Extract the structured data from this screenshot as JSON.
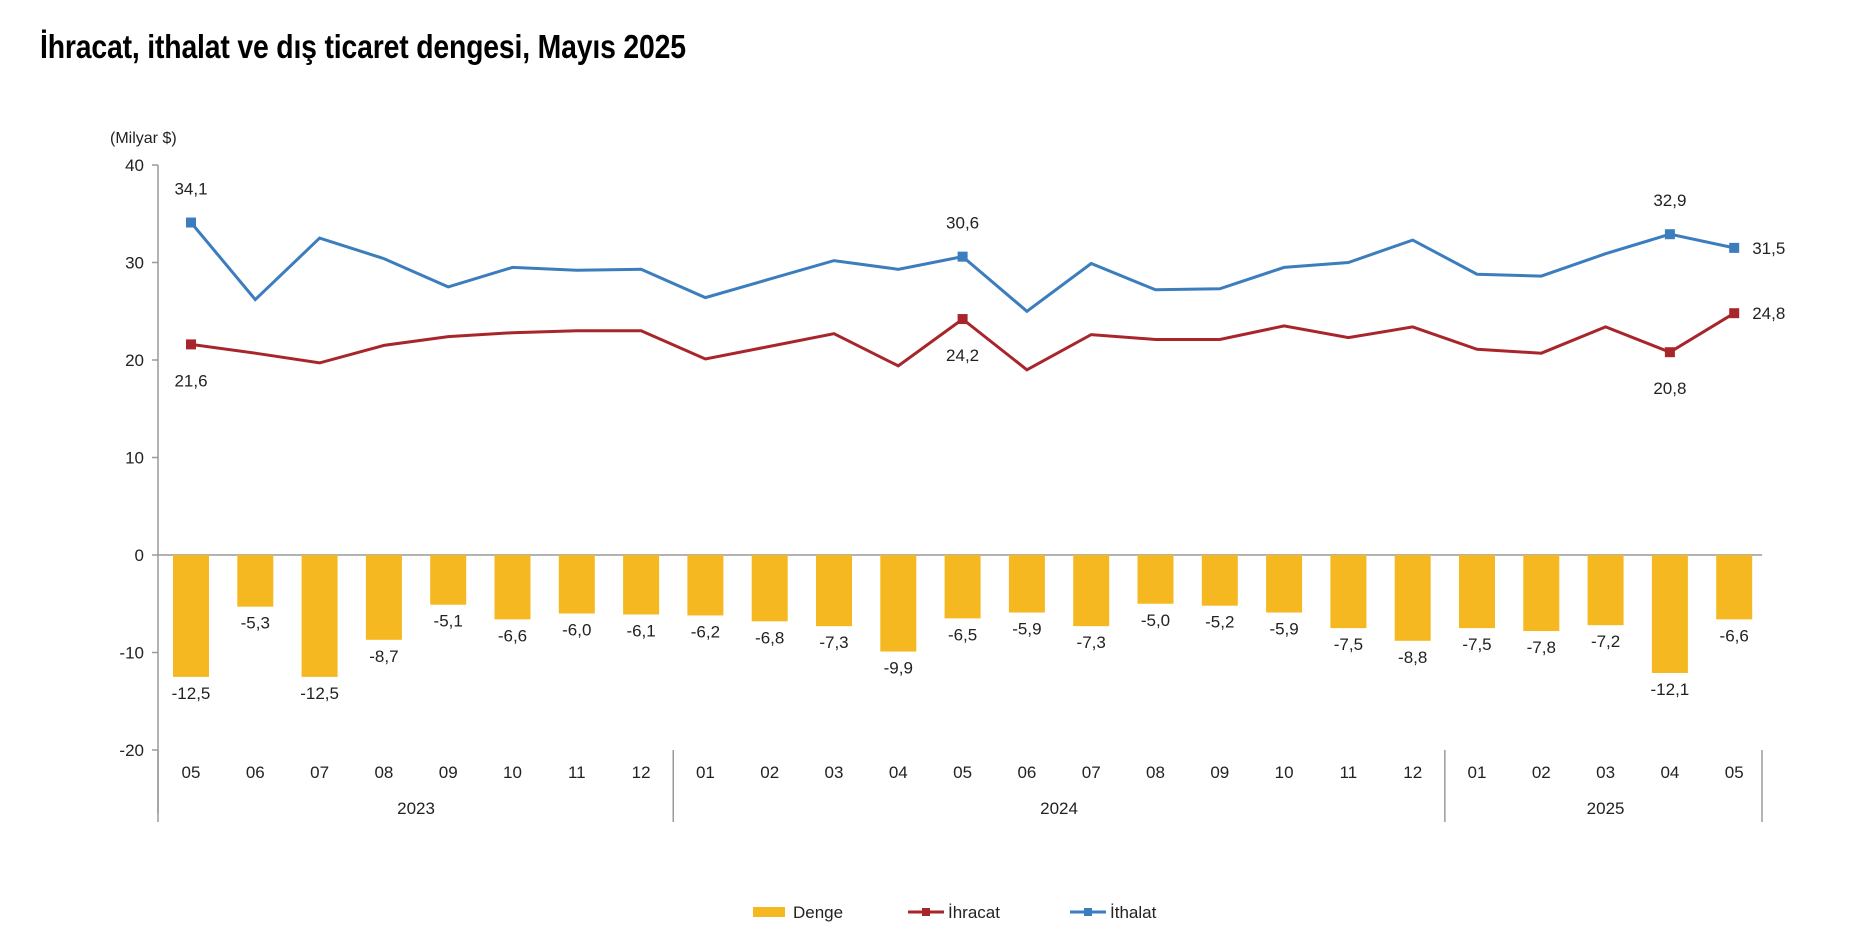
{
  "title": "İhracat, ithalat ve dış ticaret dengesi, Mayıs 2025",
  "chart_data": {
    "type": "bar+line",
    "title": "İhracat, ithalat ve dış ticaret dengesi, Mayıs 2025",
    "ylabel": "(Milyar $)",
    "xlabel": "",
    "ylim": [
      -20,
      40
    ],
    "yticks": [
      40,
      30,
      20,
      10,
      0,
      -10,
      -20
    ],
    "grid": false,
    "legend_position": "bottom",
    "categories": [
      "05",
      "06",
      "07",
      "08",
      "09",
      "10",
      "11",
      "12",
      "01",
      "02",
      "03",
      "04",
      "05",
      "06",
      "07",
      "08",
      "09",
      "10",
      "11",
      "12",
      "01",
      "02",
      "03",
      "04",
      "05"
    ],
    "year_groups": [
      {
        "label": "2023",
        "start": 0,
        "end": 7
      },
      {
        "label": "2024",
        "start": 8,
        "end": 19
      },
      {
        "label": "2025",
        "start": 20,
        "end": 24
      }
    ],
    "series": [
      {
        "name": "Denge",
        "type": "bar",
        "color": "#f5b820",
        "values": [
          -12.5,
          -5.3,
          -12.5,
          -8.7,
          -5.1,
          -6.6,
          -6.0,
          -6.1,
          -6.2,
          -6.8,
          -7.3,
          -9.9,
          -6.5,
          -5.9,
          -7.3,
          -5.0,
          -5.2,
          -5.9,
          -7.5,
          -8.8,
          -7.5,
          -7.8,
          -7.2,
          -12.1,
          -6.6
        ],
        "labels": [
          "-12,5",
          "-5,3",
          "-12,5",
          "-8,7",
          "-5,1",
          "-6,6",
          "-6,0",
          "-6,1",
          "-6,2",
          "-6,8",
          "-7,3",
          "-9,9",
          "-6,5",
          "-5,9",
          "-7,3",
          "-5,0",
          "-5,2",
          "-5,9",
          "-7,5",
          "-8,8",
          "-7,5",
          "-7,8",
          "-7,2",
          "-12,1",
          "-6,6"
        ]
      },
      {
        "name": "İhracat",
        "type": "line",
        "color": "#a8262b",
        "values": [
          21.6,
          20.7,
          19.7,
          21.5,
          22.4,
          22.8,
          23.0,
          23.0,
          20.1,
          21.4,
          22.7,
          19.4,
          24.2,
          19.0,
          22.6,
          22.1,
          22.1,
          23.5,
          22.3,
          23.4,
          21.1,
          20.7,
          23.4,
          20.8,
          24.8
        ],
        "labeled_points": [
          {
            "index": 0,
            "label": "21,6",
            "position": "below"
          },
          {
            "index": 12,
            "label": "24,2",
            "position": "below"
          },
          {
            "index": 23,
            "label": "20,8",
            "position": "below"
          },
          {
            "index": 24,
            "label": "24,8",
            "position": "right"
          }
        ]
      },
      {
        "name": "İthalat",
        "type": "line",
        "color": "#3b7dbd",
        "values": [
          34.1,
          26.2,
          32.5,
          30.4,
          27.5,
          29.5,
          29.2,
          29.3,
          26.4,
          28.3,
          30.2,
          29.3,
          30.6,
          25.0,
          29.9,
          27.2,
          27.3,
          29.5,
          30.0,
          32.3,
          28.8,
          28.6,
          30.9,
          32.9,
          31.5
        ],
        "labeled_points": [
          {
            "index": 0,
            "label": "34,1",
            "position": "above"
          },
          {
            "index": 12,
            "label": "30,6",
            "position": "above"
          },
          {
            "index": 23,
            "label": "32,9",
            "position": "above"
          },
          {
            "index": 24,
            "label": "31,5",
            "position": "right"
          }
        ]
      }
    ]
  }
}
